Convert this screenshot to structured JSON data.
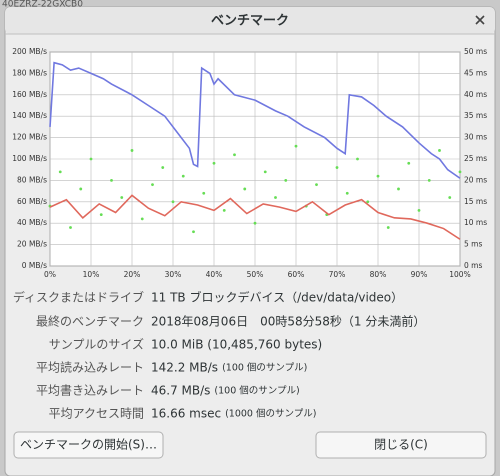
{
  "background": {
    "window_text": "40EZRZ-22GXCB0"
  },
  "dialog": {
    "title": "ベンチマーク"
  },
  "chart_data": {
    "type": "line",
    "xlim": [
      0,
      100
    ],
    "xticks": [
      {
        "value": 0,
        "label": "0%"
      },
      {
        "value": 10,
        "label": "10%"
      },
      {
        "value": 20,
        "label": "20%"
      },
      {
        "value": 30,
        "label": "30%"
      },
      {
        "value": 40,
        "label": "40%"
      },
      {
        "value": 50,
        "label": "50%"
      },
      {
        "value": 60,
        "label": "60%"
      },
      {
        "value": 70,
        "label": "70%"
      },
      {
        "value": 80,
        "label": "80%"
      },
      {
        "value": 90,
        "label": "90%"
      },
      {
        "value": 100,
        "label": "100%"
      }
    ],
    "ylim": [
      0,
      200
    ],
    "yticks": [
      {
        "value": 0,
        "label": "0 MB/s"
      },
      {
        "value": 20,
        "label": "20 MB/s"
      },
      {
        "value": 40,
        "label": "40 MB/s"
      },
      {
        "value": 60,
        "label": "60 MB/s"
      },
      {
        "value": 80,
        "label": "80 MB/s"
      },
      {
        "value": 100,
        "label": "100 MB/s"
      },
      {
        "value": 120,
        "label": "120 MB/s"
      },
      {
        "value": 140,
        "label": "140 MB/s"
      },
      {
        "value": 160,
        "label": "160 MB/s"
      },
      {
        "value": 180,
        "label": "180 MB/s"
      },
      {
        "value": 200,
        "label": "200 MB/s"
      }
    ],
    "y2lim": [
      0,
      50
    ],
    "y2ticks": [
      {
        "value": 0,
        "label": "0 ms"
      },
      {
        "value": 5,
        "label": "5 ms"
      },
      {
        "value": 10,
        "label": "10 ms"
      },
      {
        "value": 15,
        "label": "15 ms"
      },
      {
        "value": 20,
        "label": "20 ms"
      },
      {
        "value": 25,
        "label": "25 ms"
      },
      {
        "value": 30,
        "label": "30 ms"
      },
      {
        "value": 35,
        "label": "35 ms"
      },
      {
        "value": 40,
        "label": "40 ms"
      },
      {
        "value": 45,
        "label": "45 ms"
      },
      {
        "value": 50,
        "label": "50 ms"
      }
    ],
    "grid": true,
    "series": [
      {
        "type": "scatter",
        "axis": "y2",
        "color": "#66dd55",
        "x": [
          0,
          2.5,
          5,
          7.5,
          10,
          12.5,
          15,
          17.5,
          20,
          22.5,
          25,
          27.5,
          30,
          32.5,
          35,
          37.5,
          40,
          42.5,
          45,
          47.5,
          50,
          52.5,
          55,
          57.5,
          60,
          62.5,
          65,
          67.5,
          70,
          72.5,
          75,
          77.5,
          80,
          82.5,
          85,
          87.5,
          90,
          92.5,
          95,
          97.5,
          100
        ],
        "values": [
          14,
          22,
          9,
          18,
          25,
          12,
          20,
          16,
          27,
          11,
          19,
          23,
          15,
          21,
          8,
          17,
          24,
          13,
          26,
          18,
          10,
          22,
          16,
          20,
          28,
          14,
          19,
          12,
          23,
          17,
          25,
          15,
          21,
          9,
          18,
          24,
          13,
          20,
          27,
          16,
          22
        ]
      },
      {
        "type": "line",
        "color": "#7078e0",
        "x": [
          0,
          1,
          3,
          5,
          7,
          10,
          13,
          15,
          20,
          24,
          28,
          31,
          34,
          35,
          36,
          37,
          39,
          40,
          41,
          45,
          50,
          55,
          58,
          62,
          67,
          70,
          72,
          73,
          76,
          79,
          82,
          86,
          90,
          93,
          95,
          97,
          100
        ],
        "values": [
          130,
          190,
          188,
          183,
          185,
          180,
          175,
          170,
          160,
          150,
          140,
          125,
          110,
          95,
          93,
          185,
          180,
          170,
          175,
          160,
          155,
          145,
          140,
          130,
          120,
          110,
          105,
          160,
          158,
          150,
          140,
          130,
          115,
          105,
          100,
          90,
          82
        ]
      },
      {
        "type": "line",
        "color": "#e0685c",
        "x": [
          0,
          4,
          8,
          12,
          16,
          20,
          24,
          28,
          32,
          36,
          40,
          44,
          48,
          52,
          56,
          60,
          64,
          68,
          72,
          76,
          80,
          84,
          88,
          92,
          96,
          100
        ],
        "values": [
          55,
          62,
          45,
          58,
          50,
          66,
          54,
          47,
          60,
          57,
          52,
          63,
          49,
          58,
          55,
          51,
          60,
          48,
          57,
          62,
          50,
          45,
          44,
          40,
          35,
          25
        ]
      }
    ]
  },
  "details": {
    "rows": [
      {
        "label": "ディスクまたはドライブ",
        "value": "11 TB ブロックデバイス（/dev/data/video）"
      },
      {
        "label": "最終のベンチマーク",
        "value": "2018年08月06日　00時58分58秒（1 分未満前）"
      },
      {
        "label": "サンプルのサイズ",
        "value": "10.0 MiB (10,485,760 bytes)"
      },
      {
        "label": "平均読み込みレート",
        "value": "142.2 MB/s",
        "note": "(100 個のサンプル)"
      },
      {
        "label": "平均書き込みレート",
        "value": "46.7 MB/s",
        "note": "(100 個のサンプル)"
      },
      {
        "label": "平均アクセス時間",
        "value": "16.66 msec",
        "note": "(1000 個のサンプル)"
      }
    ]
  },
  "buttons": {
    "start": "ベンチマークの開始(S)…",
    "close": "閉じる(C)"
  }
}
